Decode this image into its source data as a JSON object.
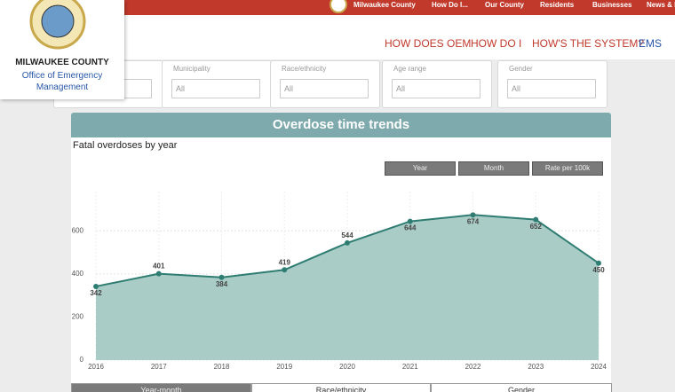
{
  "header": {
    "top_nav": [
      "Milwaukee County",
      "How Do I...",
      "Our County",
      "Residents",
      "Businesses",
      "News & Events"
    ],
    "logo": {
      "line1": "MILWAUKEE COUNTY",
      "line2": "Office of Emergency",
      "line3": "Management"
    },
    "main_nav": [
      "HOW DOES OEM",
      "HOW DO I",
      "HOW'S THE SYSTEM?",
      "EMS"
    ]
  },
  "filters": [
    {
      "label": "Municipality",
      "value": "All"
    },
    {
      "label": "Race/ethnicity",
      "value": "All"
    },
    {
      "label": "Age range",
      "value": "All"
    },
    {
      "label": "Gender",
      "value": "All"
    }
  ],
  "panel_title": "Overdose time trends",
  "buttons": [
    "Year",
    "Month",
    "Rate per 100k"
  ],
  "tabs": [
    "Year-month",
    "Race/ethnicity",
    "Gender"
  ],
  "chart_data": {
    "type": "line",
    "title": "Fatal overdoses by year",
    "x": [
      2016,
      2017,
      2018,
      2019,
      2020,
      2021,
      2022,
      2023,
      2024
    ],
    "values": [
      342,
      401,
      384,
      419,
      544,
      644,
      674,
      652,
      450
    ],
    "color": "#2f7d72",
    "area_color": "#a9ccc6",
    "xlim": [
      2016,
      2024
    ],
    "xticks": [
      2016,
      2017,
      2018,
      2019,
      2020,
      2021,
      2022,
      2023,
      2024
    ],
    "ylim": [
      0,
      700
    ],
    "yticks": [
      0,
      200,
      400,
      600
    ],
    "grid": true,
    "area": true
  }
}
